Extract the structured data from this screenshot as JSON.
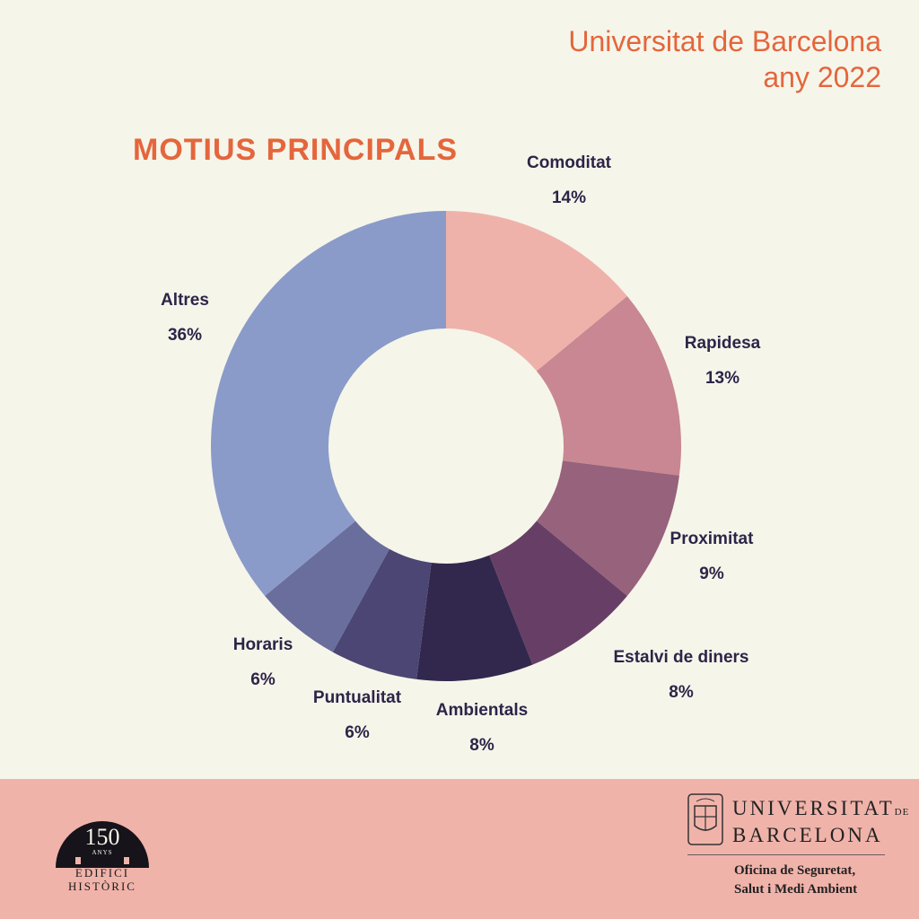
{
  "header": {
    "line1": "Universitat de Barcelona",
    "line2": "any 2022"
  },
  "chart_data": {
    "type": "pie",
    "title": "MOTIUS PRINCIPALS",
    "slices": [
      {
        "label": "Comoditat",
        "value": 14,
        "value_label": "14%",
        "color": "#efb2aa"
      },
      {
        "label": "Rapidesa",
        "value": 13,
        "value_label": "13%",
        "color": "#c88792"
      },
      {
        "label": "Proximitat",
        "value": 9,
        "value_label": "9%",
        "color": "#97627c"
      },
      {
        "label": "Estalvi de diners",
        "value": 8,
        "value_label": "8%",
        "color": "#673f66"
      },
      {
        "label": "Ambientals",
        "value": 8,
        "value_label": "8%",
        "color": "#32284d"
      },
      {
        "label": "Puntualitat",
        "value": 6,
        "value_label": "6%",
        "color": "#4c4674"
      },
      {
        "label": "Horaris",
        "value": 6,
        "value_label": "6%",
        "color": "#6a6e9c"
      },
      {
        "label": "Altres",
        "value": 36,
        "value_label": "36%",
        "color": "#8a9bc9"
      }
    ],
    "hole": true
  },
  "footer": {
    "badge_number": "150",
    "badge_anys": "ANYS",
    "badge_line1": "EDIFICI",
    "badge_line2": "HISTÒRIC",
    "ub_line1": "UNIVERSITAT",
    "ub_de": "DE",
    "ub_line2": "BARCELONA",
    "office_line1": "Oficina de Seguretat,",
    "office_line2": "Salut i Medi Ambient",
    "background": "#f0b3aa"
  }
}
